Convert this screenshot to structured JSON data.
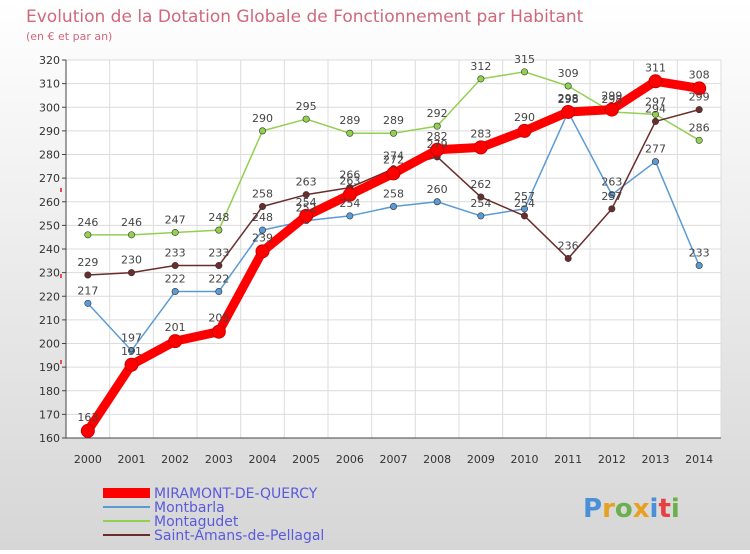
{
  "title": "Evolution de la Dotation Globale de Fonctionnement par Habitant",
  "subtitle": "(en € et par an)",
  "brand": {
    "text": "Proxiti",
    "letters": [
      "P",
      "r",
      "o",
      "x",
      "i",
      "t",
      "i"
    ],
    "colors": [
      "#4a90d9",
      "#e8a020",
      "#6ab04c",
      "#e8a020",
      "#4a90d9",
      "#e84040",
      "#6ab04c"
    ]
  },
  "chart_data": {
    "type": "line",
    "title": "Evolution de la Dotation Globale de Fonctionnement par Habitant",
    "subtitle": "(en € et par an)",
    "xlabel": "",
    "ylabel": "",
    "ylim": [
      160,
      320
    ],
    "ytick_step": 10,
    "grid": true,
    "legend_position": "bottom-left",
    "categories": [
      "2000",
      "2001",
      "2002",
      "2003",
      "2004",
      "2005",
      "2006",
      "2007",
      "2008",
      "2009",
      "2010",
      "2011",
      "2012",
      "2013",
      "2014"
    ],
    "series": [
      {
        "name": "Montbarla",
        "color": "#5b9bd5",
        "values": [
          217,
          197,
          222,
          222,
          248,
          252,
          254,
          258,
          260,
          254,
          257,
          298,
          263,
          277,
          233
        ],
        "labels": [
          "217",
          "197",
          "222",
          "222",
          "248",
          "252",
          "254",
          "258",
          "260",
          "254",
          "257",
          "298",
          "263",
          "277",
          "233"
        ]
      },
      {
        "name": "Montagudet",
        "color": "#92d050",
        "values": [
          246,
          246,
          247,
          248,
          290,
          295,
          289,
          289,
          292,
          312,
          315,
          309,
          298,
          297,
          286
        ],
        "labels": [
          "246",
          "246",
          "247",
          "248",
          "290",
          "295",
          "289",
          "289",
          "292",
          "312",
          "315",
          "309",
          "298",
          "297",
          "286"
        ]
      },
      {
        "name": "Saint-Amans-de-Pellagal",
        "color": "#6b2c2c",
        "values": [
          229,
          230,
          233,
          233,
          258,
          263,
          266,
          274,
          279,
          262,
          254,
          236,
          257,
          294,
          299
        ],
        "labels": [
          "229",
          "230",
          "233",
          "233",
          "258",
          "263",
          "266",
          "274",
          "279",
          "262",
          "254",
          "236",
          "257",
          "294",
          "299"
        ]
      },
      {
        "name": "MIRAMONT-DE-QUERCY",
        "color": "#ff0000",
        "values": [
          163,
          191,
          201,
          205,
          239,
          254,
          263,
          272,
          282,
          283,
          290,
          298,
          299,
          311,
          308
        ],
        "labels": [
          "163",
          "191",
          "201",
          "205",
          "239",
          "254",
          "263",
          "272",
          "282",
          "283",
          "290",
          "298",
          "299",
          "311",
          "308"
        ]
      }
    ],
    "legend_order": [
      "MIRAMONT-DE-QUERCY",
      "Montbarla",
      "Montagudet",
      "Saint-Amans-de-Pellagal"
    ]
  }
}
